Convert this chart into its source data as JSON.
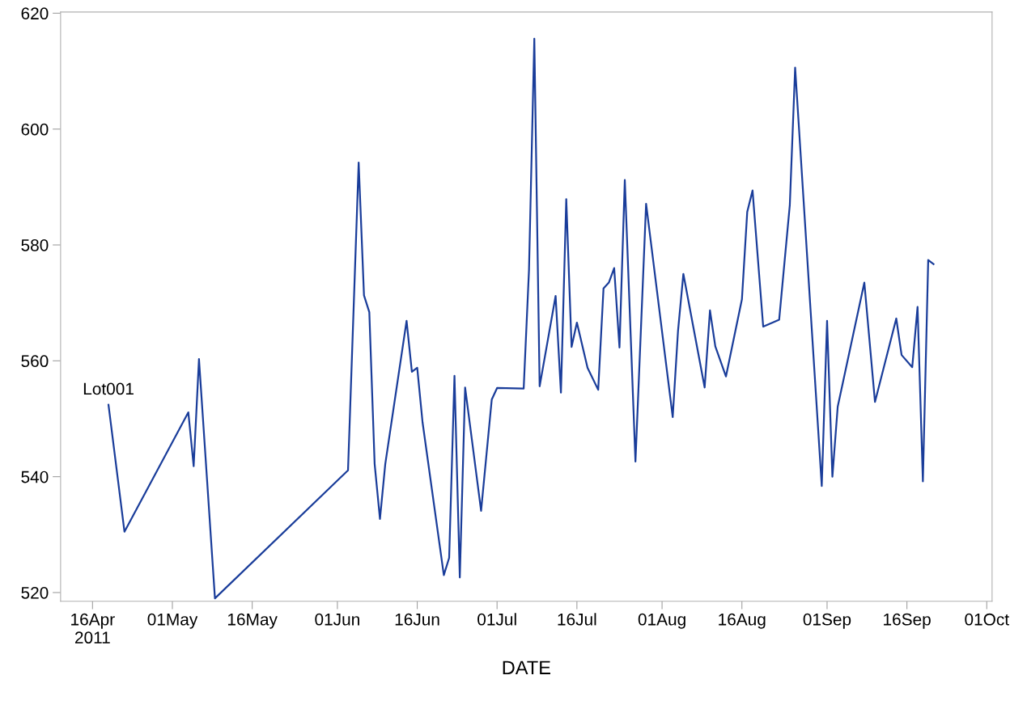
{
  "chart_data": {
    "type": "line",
    "xlabel": "DATE",
    "x": [
      "2011-04-19",
      "2011-04-22",
      "2011-05-04",
      "2011-05-05",
      "2011-05-06",
      "2011-05-09",
      "2011-06-03",
      "2011-06-05",
      "2011-06-06",
      "2011-06-07",
      "2011-06-08",
      "2011-06-09",
      "2011-06-10",
      "2011-06-14",
      "2011-06-15",
      "2011-06-16",
      "2011-06-17",
      "2011-06-21",
      "2011-06-22",
      "2011-06-23",
      "2011-06-24",
      "2011-06-25",
      "2011-06-28",
      "2011-06-30",
      "2011-07-01",
      "2011-07-06",
      "2011-07-07",
      "2011-07-08",
      "2011-07-09",
      "2011-07-12",
      "2011-07-13",
      "2011-07-14",
      "2011-07-15",
      "2011-07-16",
      "2011-07-18",
      "2011-07-20",
      "2011-07-21",
      "2011-07-22",
      "2011-07-23",
      "2011-07-24",
      "2011-07-25",
      "2011-07-27",
      "2011-07-29",
      "2011-08-03",
      "2011-08-04",
      "2011-08-05",
      "2011-08-09",
      "2011-08-10",
      "2011-08-11",
      "2011-08-13",
      "2011-08-16",
      "2011-08-17",
      "2011-08-18",
      "2011-08-20",
      "2011-08-23",
      "2011-08-25",
      "2011-08-26",
      "2011-08-31",
      "2011-09-01",
      "2011-09-02",
      "2011-09-03",
      "2011-09-08",
      "2011-09-10",
      "2011-09-14",
      "2011-09-15",
      "2011-09-17",
      "2011-09-18",
      "2011-09-19",
      "2011-09-20",
      "2011-09-21"
    ],
    "series": [
      {
        "name": "Lot001",
        "color": "#1a3d9a",
        "values": [
          552.4,
          530.5,
          551.1,
          541.8,
          560.3,
          519.0,
          541.1,
          594.2,
          571.3,
          568.4,
          542.2,
          532.7,
          542.2,
          566.9,
          558.1,
          558.8,
          549.4,
          523.0,
          526.0,
          557.4,
          522.6,
          555.4,
          534.1,
          553.3,
          555.3,
          555.2,
          575.7,
          615.6,
          555.6,
          571.2,
          554.5,
          587.9,
          562.4,
          566.6,
          558.8,
          555.0,
          572.5,
          573.5,
          576.0,
          562.3,
          591.2,
          542.6,
          587.1,
          550.3,
          565.2,
          575.0,
          555.4,
          568.7,
          562.5,
          557.3,
          570.6,
          585.7,
          589.4,
          565.9,
          567.1,
          586.9,
          610.6,
          538.4,
          566.9,
          540.0,
          552.1,
          573.5,
          552.9,
          567.3,
          561.0,
          558.9,
          569.3,
          539.2,
          577.4,
          576.7
        ]
      }
    ],
    "xlim": [
      "2011-04-10",
      "2011-10-02"
    ],
    "xticks": [
      {
        "value": "2011-04-16",
        "label": "16Apr\n2011"
      },
      {
        "value": "2011-05-01",
        "label": "01May"
      },
      {
        "value": "2011-05-16",
        "label": "16May"
      },
      {
        "value": "2011-06-01",
        "label": "01Jun"
      },
      {
        "value": "2011-06-16",
        "label": "16Jun"
      },
      {
        "value": "2011-07-01",
        "label": "01Jul"
      },
      {
        "value": "2011-07-16",
        "label": "16Jul"
      },
      {
        "value": "2011-08-01",
        "label": "01Aug"
      },
      {
        "value": "2011-08-16",
        "label": "16Aug"
      },
      {
        "value": "2011-09-01",
        "label": "01Sep"
      },
      {
        "value": "2011-09-16",
        "label": "16Sep"
      },
      {
        "value": "2011-10-01",
        "label": "01Oct"
      }
    ],
    "ylim": [
      518.5,
      620.2
    ],
    "yticks": [
      520,
      540,
      560,
      580,
      600,
      620
    ],
    "grid": false,
    "legend": false
  }
}
